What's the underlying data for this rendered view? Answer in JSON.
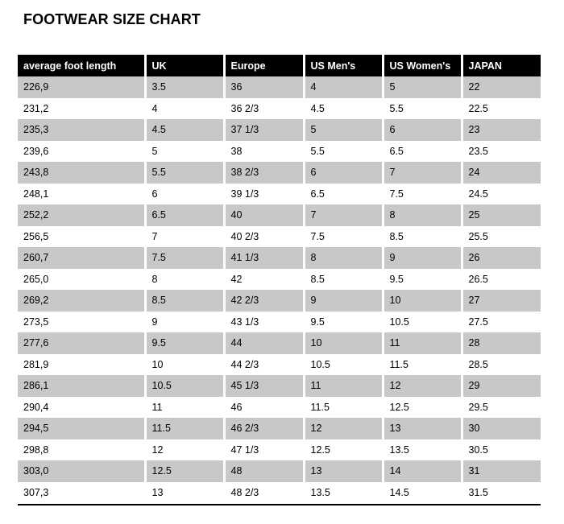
{
  "title": "FOOTWEAR SIZE CHART",
  "table": {
    "headers": [
      "average foot length",
      "UK",
      "Europe",
      "US Men's",
      "US Women's",
      "JAPAN"
    ],
    "rows": [
      [
        "226,9",
        "3.5",
        "36",
        "4",
        "5",
        "22"
      ],
      [
        "231,2",
        "4",
        "36 2/3",
        "4.5",
        "5.5",
        "22.5"
      ],
      [
        "235,3",
        "4.5",
        "37 1/3",
        "5",
        "6",
        "23"
      ],
      [
        "239,6",
        "5",
        "38",
        "5.5",
        "6.5",
        "23.5"
      ],
      [
        "243,8",
        "5.5",
        "38 2/3",
        "6",
        "7",
        "24"
      ],
      [
        "248,1",
        "6",
        "39 1/3",
        "6.5",
        "7.5",
        "24.5"
      ],
      [
        "252,2",
        "6.5",
        "40",
        "7",
        "8",
        "25"
      ],
      [
        "256,5",
        "7",
        "40 2/3",
        "7.5",
        "8.5",
        "25.5"
      ],
      [
        "260,7",
        "7.5",
        "41 1/3",
        "8",
        "9",
        "26"
      ],
      [
        "265,0",
        "8",
        "42",
        "8.5",
        "9.5",
        "26.5"
      ],
      [
        "269,2",
        "8.5",
        "42 2/3",
        "9",
        "10",
        "27"
      ],
      [
        "273,5",
        "9",
        "43 1/3",
        "9.5",
        "10.5",
        "27.5"
      ],
      [
        "277,6",
        "9.5",
        "44",
        "10",
        "11",
        "28"
      ],
      [
        "281,9",
        "10",
        "44 2/3",
        "10.5",
        "11.5",
        "28.5"
      ],
      [
        "286,1",
        "10.5",
        "45 1/3",
        "11",
        "12",
        "29"
      ],
      [
        "290,4",
        "11",
        "46",
        "11.5",
        "12.5",
        "29.5"
      ],
      [
        "294,5",
        "11.5",
        "46 2/3",
        "12",
        "13",
        "30"
      ],
      [
        "298,8",
        "12",
        "47 1/3",
        "12.5",
        "13.5",
        "30.5"
      ],
      [
        "303,0",
        "12.5",
        "48",
        "13",
        "14",
        "31"
      ],
      [
        "307,3",
        "13",
        "48 2/3",
        "13.5",
        "14.5",
        "31.5"
      ]
    ]
  },
  "colors": {
    "header_background": "#000000",
    "header_text": "#ffffff",
    "stripe_row": "#c8c8c8",
    "plain_row": "#ffffff"
  }
}
